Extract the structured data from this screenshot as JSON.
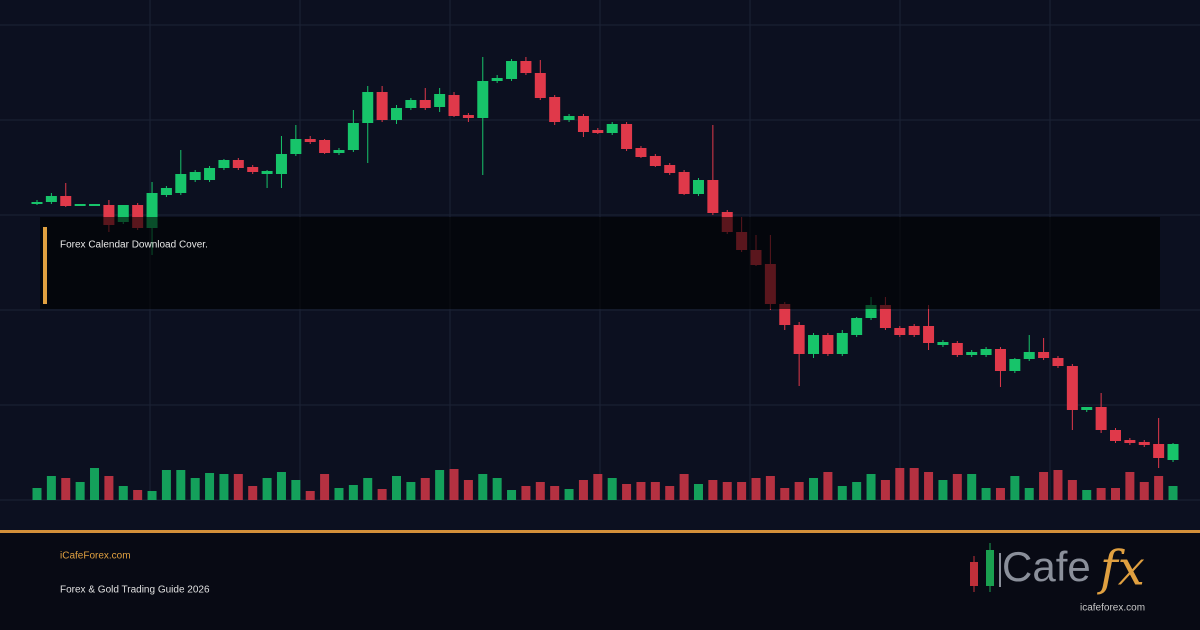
{
  "chart_data": {
    "type": "candlestick",
    "up_color": "#17c46a",
    "down_color": "#e0394a",
    "ylim": [
      0,
      475
    ],
    "yticks": [
      0,
      95,
      190,
      285,
      380,
      475
    ],
    "grid": true,
    "open": [
      296,
      298,
      304,
      294,
      294,
      295,
      278,
      295,
      272,
      305,
      307,
      320,
      320,
      332,
      340,
      333,
      326,
      326,
      346,
      361,
      360,
      347,
      350,
      377,
      408,
      380,
      392,
      400,
      393,
      405,
      385,
      382,
      419,
      421,
      439,
      427,
      403,
      380,
      384,
      370,
      367,
      376,
      352,
      344,
      335,
      328,
      306,
      320,
      288,
      268,
      250,
      236,
      196,
      175,
      146,
      165,
      146,
      165,
      182,
      195,
      172,
      174,
      174,
      155,
      157,
      145,
      145,
      151,
      129,
      141,
      148,
      142,
      134,
      90,
      93,
      70,
      60,
      58,
      56,
      40
    ],
    "high": [
      300,
      307,
      317,
      296,
      296,
      300,
      295,
      297,
      318,
      314,
      350,
      330,
      334,
      341,
      342,
      335,
      330,
      364,
      375,
      364,
      361,
      352,
      390,
      414,
      414,
      395,
      402,
      412,
      412,
      408,
      387,
      443,
      425,
      441,
      443,
      440,
      405,
      386,
      386,
      372,
      378,
      378,
      354,
      346,
      337,
      330,
      322,
      375,
      290,
      283,
      265,
      265,
      198,
      178,
      167,
      167,
      170,
      183,
      203,
      203,
      174,
      176,
      195,
      160,
      159,
      150,
      153,
      153,
      142,
      165,
      162,
      144,
      136,
      93,
      107,
      72,
      62,
      60,
      82,
      57
    ],
    "low": [
      295,
      296,
      293,
      294,
      294,
      268,
      276,
      270,
      245,
      303,
      305,
      318,
      318,
      330,
      330,
      326,
      312,
      312,
      344,
      356,
      346,
      345,
      348,
      337,
      378,
      376,
      390,
      390,
      388,
      383,
      378,
      325,
      417,
      419,
      425,
      400,
      375,
      378,
      363,
      366,
      365,
      349,
      342,
      333,
      325,
      305,
      304,
      285,
      266,
      248,
      234,
      190,
      170,
      114,
      142,
      144,
      144,
      163,
      180,
      170,
      163,
      163,
      150,
      153,
      143,
      143,
      143,
      113,
      127,
      139,
      140,
      132,
      70,
      88,
      67,
      57,
      55,
      53,
      32,
      38
    ],
    "close": [
      298,
      304,
      294,
      296,
      296,
      275,
      295,
      272,
      307,
      312,
      326,
      328,
      332,
      340,
      332,
      328,
      329,
      346,
      361,
      358,
      347,
      350,
      377,
      408,
      380,
      392,
      400,
      392,
      406,
      384,
      382,
      419,
      422,
      439,
      427,
      402,
      378,
      384,
      368,
      367,
      376,
      351,
      343,
      334,
      327,
      306,
      320,
      287,
      268,
      250,
      235,
      196,
      175,
      146,
      165,
      146,
      167,
      182,
      195,
      172,
      165,
      165,
      157,
      158,
      145,
      148,
      151,
      129,
      141,
      148,
      142,
      134,
      90,
      93,
      70,
      59,
      57,
      55,
      42,
      56
    ],
    "volume": [
      12,
      24,
      22,
      18,
      32,
      24,
      14,
      10,
      9,
      30,
      30,
      22,
      27,
      26,
      26,
      14,
      22,
      28,
      20,
      9,
      26,
      12,
      15,
      22,
      11,
      24,
      18,
      22,
      30,
      31,
      20,
      26,
      22,
      10,
      14,
      18,
      14,
      11,
      20,
      26,
      22,
      16,
      18,
      18,
      14,
      26,
      16,
      20,
      18,
      18,
      22,
      24,
      12,
      18,
      22,
      28,
      14,
      18,
      26,
      20,
      32,
      32,
      28,
      20,
      26,
      26,
      12,
      12,
      24,
      12,
      28,
      30,
      20,
      10,
      12,
      12,
      28,
      18,
      24,
      14
    ]
  },
  "overlay": {
    "text": "Forex Calendar Download Cover."
  },
  "footer": {
    "site": "iCafeForex.com",
    "subtitle": "Forex & Gold Trading Guide 2026"
  },
  "logo": {
    "word": "Cafe",
    "accent": "fx",
    "url": "icafeforex.com"
  }
}
